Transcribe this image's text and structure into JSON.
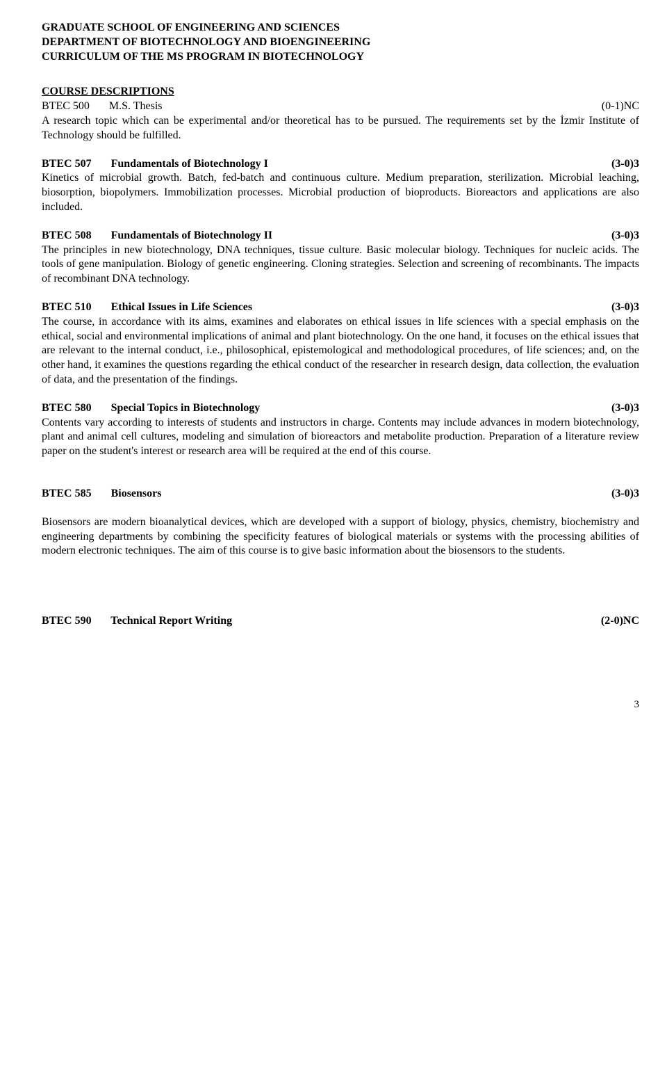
{
  "header": {
    "line1": "GRADUATE SCHOOL OF ENGINEERING AND SCIENCES",
    "line2": "DEPARTMENT OF BIOTECHNOLOGY AND BIOENGINEERING",
    "line3": "CURRICULUM OF THE MS PROGRAM IN BIOTECHNOLOGY"
  },
  "section_title": "COURSE DESCRIPTIONS",
  "courses": {
    "c500": {
      "code_title": "BTEC 500       M.S. Thesis",
      "credits": "(0-1)NC",
      "description": "A research topic which can be experimental and/or theoretical has to be pursued. The requirements set by the İzmir Institute of Technology should be fulfilled."
    },
    "c507": {
      "code_title": "BTEC 507       Fundamentals of Biotechnology I",
      "credits": "(3-0)3",
      "description": "Kinetics of microbial growth. Batch, fed-batch and continuous culture. Medium preparation, sterilization. Microbial leaching, biosorption, biopolymers. Immobilization processes. Microbial production of bioproducts. Bioreactors and applications are also included."
    },
    "c508": {
      "code_title": "BTEC 508       Fundamentals of Biotechnology II",
      "credits": "(3-0)3",
      "description": "The principles in new biotechnology, DNA techniques, tissue culture. Basic molecular biology. Techniques for nucleic acids. The tools of gene manipulation. Biology of genetic engineering. Cloning strategies. Selection and screening of recombinants. The impacts of recombinant DNA technology."
    },
    "c510": {
      "code_title": "BTEC 510       Ethical Issues in Life Sciences",
      "credits": "(3-0)3",
      "description": "The course, in accordance with its aims, examines and elaborates on ethical issues in life sciences with a special emphasis on the ethical, social and environmental implications of animal and plant biotechnology. On the one hand, it focuses on the ethical issues that are relevant to the internal conduct, i.e., philosophical, epistemological and methodological procedures, of life sciences; and, on the other hand, it examines the questions regarding the ethical conduct of the researcher in research design, data collection, the evaluation of data, and the presentation of the findings."
    },
    "c580": {
      "code_title": "BTEC 580       Special Topics in Biotechnology",
      "credits": "(3-0)3",
      "description": "Contents vary according to interests of students and instructors in charge. Contents may include advances in modern biotechnology, plant and animal cell cultures, modeling and simulation of bioreactors and metabolite production. Preparation of a literature review paper on the student's interest or research area will be required at the end of this course."
    },
    "c585": {
      "code_title": "BTEC 585       Biosensors",
      "credits": "(3-0)3",
      "description": "Biosensors are modern bioanalytical devices, which are developed with a support of biology, physics, chemistry, biochemistry and engineering departments by combining the specificity features of biological materials or systems with the processing abilities of modern electronic techniques. The aim of this course is to give basic information about the biosensors to the students."
    },
    "c590": {
      "code_title": "BTEC 590       Technical Report Writing",
      "credits": "(2-0)NC"
    }
  },
  "page_number": "3"
}
